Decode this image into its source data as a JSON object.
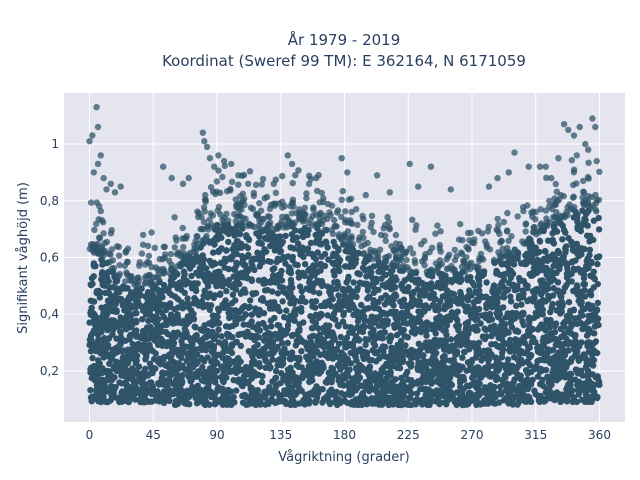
{
  "chart_data": {
    "type": "scatter",
    "title_lines": [
      "År 1979 - 2019",
      "Koordinat (Sweref 99 TM): E 362164, N 6171059"
    ],
    "xlabel": "Vågriktning (grader)",
    "ylabel": "Signifikant våghöjd (m)",
    "xlim": [
      -18,
      378
    ],
    "ylim": [
      0.02,
      1.18
    ],
    "xticks": [
      0,
      45,
      90,
      135,
      180,
      225,
      270,
      315,
      360
    ],
    "xtick_labels": [
      "0",
      "45",
      "90",
      "135",
      "180",
      "225",
      "270",
      "315",
      "360"
    ],
    "yticks": [
      0.2,
      0.4,
      0.6,
      0.8,
      1.0
    ],
    "ytick_labels": [
      "0,2",
      "0,4",
      "0,6",
      "0,8",
      "1"
    ],
    "grid": true,
    "legend": "none",
    "marker_color": "#2f5469",
    "plot_background": "#e5e5ef",
    "grid_color": "#ffffff",
    "density_envelope": {
      "x": [
        0,
        10,
        20,
        30,
        45,
        60,
        75,
        90,
        105,
        120,
        135,
        150,
        165,
        180,
        195,
        210,
        225,
        240,
        255,
        270,
        285,
        300,
        315,
        330,
        345,
        360
      ],
      "y_min": [
        0.09,
        0.09,
        0.09,
        0.09,
        0.09,
        0.08,
        0.08,
        0.08,
        0.08,
        0.08,
        0.08,
        0.08,
        0.08,
        0.08,
        0.08,
        0.08,
        0.08,
        0.08,
        0.08,
        0.08,
        0.08,
        0.08,
        0.09,
        0.09,
        0.09,
        0.09
      ],
      "y_dense_max": [
        0.62,
        0.6,
        0.52,
        0.5,
        0.5,
        0.55,
        0.62,
        0.72,
        0.72,
        0.7,
        0.7,
        0.72,
        0.7,
        0.65,
        0.6,
        0.58,
        0.55,
        0.55,
        0.55,
        0.55,
        0.58,
        0.62,
        0.68,
        0.72,
        0.78,
        0.75
      ]
    },
    "outliers": [
      {
        "x": 5,
        "y": 1.13
      },
      {
        "x": 6,
        "y": 1.06
      },
      {
        "x": 2,
        "y": 1.03
      },
      {
        "x": 0,
        "y": 1.01
      },
      {
        "x": 8,
        "y": 0.96
      },
      {
        "x": 6,
        "y": 0.93
      },
      {
        "x": 10,
        "y": 0.88
      },
      {
        "x": 3,
        "y": 0.9
      },
      {
        "x": 15,
        "y": 0.86
      },
      {
        "x": 22,
        "y": 0.85
      },
      {
        "x": 18,
        "y": 0.83
      },
      {
        "x": 12,
        "y": 0.84
      },
      {
        "x": 52,
        "y": 0.92
      },
      {
        "x": 58,
        "y": 0.88
      },
      {
        "x": 66,
        "y": 0.86
      },
      {
        "x": 70,
        "y": 0.88
      },
      {
        "x": 80,
        "y": 1.04
      },
      {
        "x": 81,
        "y": 1.01
      },
      {
        "x": 83,
        "y": 0.99
      },
      {
        "x": 85,
        "y": 0.95
      },
      {
        "x": 91,
        "y": 0.96
      },
      {
        "x": 95,
        "y": 0.94
      },
      {
        "x": 100,
        "y": 0.93
      },
      {
        "x": 88,
        "y": 0.92
      },
      {
        "x": 105,
        "y": 0.89
      },
      {
        "x": 112,
        "y": 0.86
      },
      {
        "x": 130,
        "y": 0.86
      },
      {
        "x": 140,
        "y": 0.96
      },
      {
        "x": 143,
        "y": 0.93
      },
      {
        "x": 155,
        "y": 0.86
      },
      {
        "x": 160,
        "y": 0.88
      },
      {
        "x": 178,
        "y": 0.95
      },
      {
        "x": 182,
        "y": 0.9
      },
      {
        "x": 195,
        "y": 0.82
      },
      {
        "x": 203,
        "y": 0.89
      },
      {
        "x": 212,
        "y": 0.83
      },
      {
        "x": 226,
        "y": 0.93
      },
      {
        "x": 241,
        "y": 0.92
      },
      {
        "x": 232,
        "y": 0.85
      },
      {
        "x": 255,
        "y": 0.84
      },
      {
        "x": 282,
        "y": 0.85
      },
      {
        "x": 288,
        "y": 0.88
      },
      {
        "x": 296,
        "y": 0.9
      },
      {
        "x": 300,
        "y": 0.97
      },
      {
        "x": 310,
        "y": 0.92
      },
      {
        "x": 318,
        "y": 0.92
      },
      {
        "x": 322,
        "y": 0.92
      },
      {
        "x": 331,
        "y": 0.95
      },
      {
        "x": 335,
        "y": 1.07
      },
      {
        "x": 338,
        "y": 1.05
      },
      {
        "x": 342,
        "y": 1.03
      },
      {
        "x": 346,
        "y": 1.06
      },
      {
        "x": 350,
        "y": 1.0
      },
      {
        "x": 355,
        "y": 1.09
      },
      {
        "x": 357,
        "y": 1.06
      },
      {
        "x": 352,
        "y": 0.98
      },
      {
        "x": 358,
        "y": 0.94
      },
      {
        "x": 344,
        "y": 0.96
      },
      {
        "x": 326,
        "y": 0.88
      }
    ]
  }
}
